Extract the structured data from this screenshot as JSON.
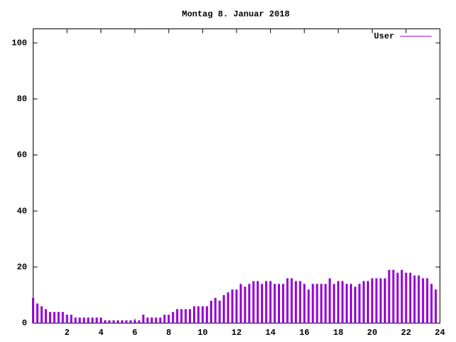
{
  "chart_data": {
    "type": "impulses",
    "title": "Montag 8. Januar 2018",
    "x": [
      0,
      0.25,
      0.5,
      0.75,
      1,
      1.25,
      1.5,
      1.75,
      2,
      2.25,
      2.5,
      2.75,
      3,
      3.25,
      3.5,
      3.75,
      4,
      4.25,
      4.5,
      4.75,
      5,
      5.25,
      5.5,
      5.75,
      6,
      6.25,
      6.5,
      6.75,
      7,
      7.25,
      7.5,
      7.75,
      8,
      8.25,
      8.5,
      8.75,
      9,
      9.25,
      9.5,
      9.75,
      10,
      10.25,
      10.5,
      10.75,
      11,
      11.25,
      11.5,
      11.75,
      12,
      12.25,
      12.5,
      12.75,
      13,
      13.25,
      13.5,
      13.75,
      14,
      14.25,
      14.5,
      14.75,
      15,
      15.25,
      15.5,
      15.75,
      16,
      16.25,
      16.5,
      16.75,
      17,
      17.25,
      17.5,
      17.75,
      18,
      18.25,
      18.5,
      18.75,
      19,
      19.25,
      19.5,
      19.75,
      20,
      20.25,
      20.5,
      20.75,
      21,
      21.25,
      21.5,
      21.75,
      22,
      22.25,
      22.5,
      22.75,
      23,
      23.25,
      23.5,
      23.75
    ],
    "series": [
      {
        "name": "User",
        "color": "#9400d3",
        "values": [
          9,
          7,
          6,
          5,
          4,
          4,
          4,
          4,
          3,
          3,
          2,
          2,
          2,
          2,
          2,
          2,
          2,
          1,
          1,
          1,
          1,
          1,
          1,
          1,
          1,
          1,
          3,
          2,
          2,
          2,
          2,
          3,
          3,
          4,
          5,
          5,
          5,
          5,
          6,
          6,
          6,
          6,
          8,
          9,
          8,
          10,
          11,
          12,
          12,
          14,
          13,
          14,
          15,
          15,
          14,
          15,
          15,
          14,
          14,
          14,
          16,
          16,
          15,
          15,
          14,
          12,
          14,
          14,
          14,
          14,
          16,
          14,
          15,
          15,
          14,
          14,
          13,
          14,
          15,
          15,
          16,
          16,
          16,
          16,
          19,
          19,
          18,
          19,
          18,
          18,
          17,
          17,
          16,
          16,
          14,
          12
        ]
      }
    ],
    "xlim": [
      0,
      24
    ],
    "xticks": [
      2,
      4,
      6,
      8,
      10,
      12,
      14,
      16,
      18,
      20,
      22,
      24
    ],
    "ylim": [
      0,
      105
    ],
    "yticks": [
      0,
      20,
      40,
      60,
      80,
      100
    ],
    "legend": "top-right"
  }
}
